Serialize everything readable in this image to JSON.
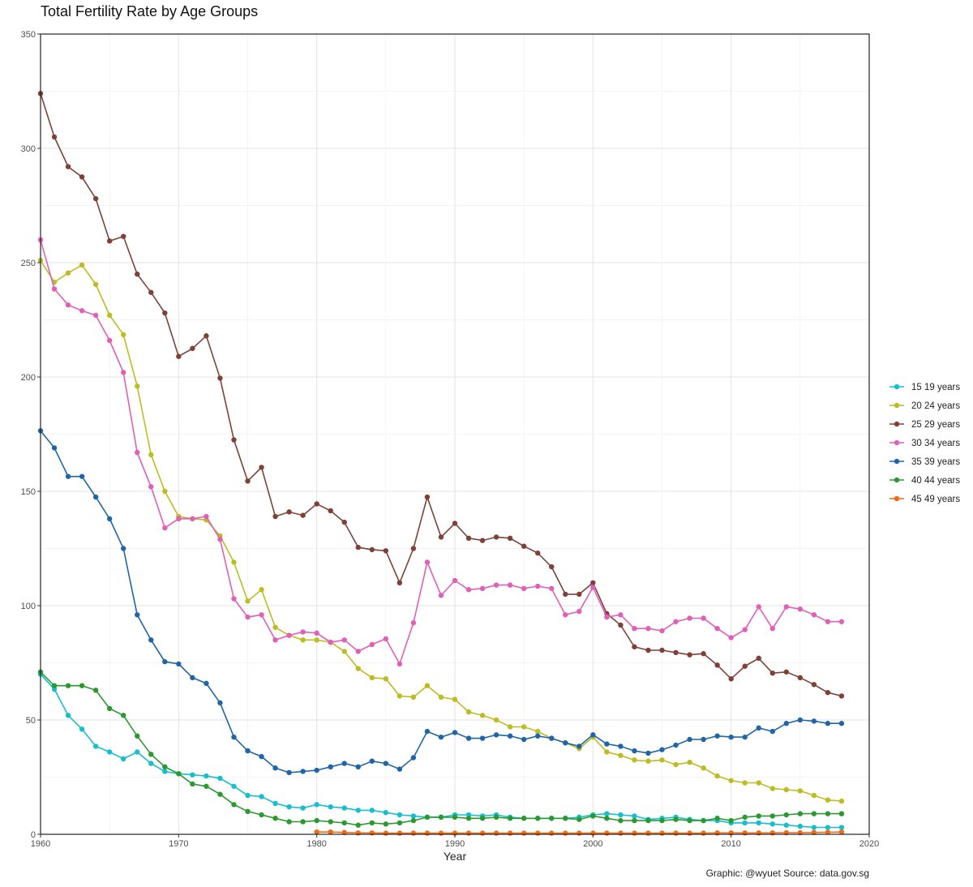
{
  "chart_data": {
    "type": "line",
    "title": "Total Fertility Rate by Age Groups",
    "xlabel": "Year",
    "ylabel": "",
    "xlim": [
      1960,
      2020
    ],
    "ylim": [
      0,
      350
    ],
    "x_ticks": [
      1960,
      1970,
      1980,
      1990,
      2000,
      2010,
      2020
    ],
    "y_ticks": [
      0,
      50,
      100,
      150,
      200,
      250,
      300,
      350
    ],
    "grid": true,
    "legend_position": "right",
    "caption": "Graphic: @wyuet Source: data.gov.sg",
    "series": [
      {
        "name": "15 19 years",
        "color": "#17becf",
        "x": [
          1960,
          1961,
          1962,
          1963,
          1964,
          1965,
          1966,
          1967,
          1968,
          1969,
          1970,
          1971,
          1972,
          1973,
          1974,
          1975,
          1976,
          1977,
          1978,
          1979,
          1980,
          1981,
          1982,
          1983,
          1984,
          1985,
          1986,
          1987,
          1988,
          1989,
          1990,
          1991,
          1992,
          1993,
          1994,
          1995,
          1996,
          1997,
          1998,
          1999,
          2000,
          2001,
          2002,
          2003,
          2004,
          2005,
          2006,
          2007,
          2008,
          2009,
          2010,
          2011,
          2012,
          2013,
          2014,
          2015,
          2016,
          2017,
          2018
        ],
        "values": [
          70,
          63.5,
          52,
          46,
          38.5,
          36,
          33,
          36,
          31,
          27.5,
          26.5,
          26,
          25.5,
          24.5,
          21,
          17,
          16.5,
          13.5,
          12,
          11.5,
          13,
          12,
          11.5,
          10.5,
          10.5,
          9.5,
          8.5,
          8,
          7.5,
          7.5,
          8.5,
          8.5,
          8,
          8.5,
          7.5,
          7,
          7,
          7,
          7,
          7.5,
          8.5,
          9,
          8.5,
          8,
          6.5,
          7,
          7.5,
          6.5,
          6,
          6,
          5,
          5,
          5,
          4.5,
          4,
          3.5,
          3,
          3,
          3
        ]
      },
      {
        "name": "20 24 years",
        "color": "#bcbd22",
        "x": [
          1960,
          1961,
          1962,
          1963,
          1964,
          1965,
          1966,
          1967,
          1968,
          1969,
          1970,
          1971,
          1972,
          1973,
          1974,
          1975,
          1976,
          1977,
          1978,
          1979,
          1980,
          1981,
          1982,
          1983,
          1984,
          1985,
          1986,
          1987,
          1988,
          1989,
          1990,
          1991,
          1992,
          1993,
          1994,
          1995,
          1996,
          1997,
          1998,
          1999,
          2000,
          2001,
          2002,
          2003,
          2004,
          2005,
          2006,
          2007,
          2008,
          2009,
          2010,
          2011,
          2012,
          2013,
          2014,
          2015,
          2016,
          2017,
          2018
        ],
        "values": [
          251,
          241.5,
          245.5,
          249,
          240.5,
          227,
          218.5,
          196,
          166,
          150,
          139,
          138,
          137.5,
          130.5,
          119,
          102,
          107,
          90.5,
          87,
          85,
          85,
          84,
          80,
          72.5,
          68.5,
          68,
          60.5,
          60,
          65,
          60,
          59,
          53.5,
          52,
          50,
          47,
          47,
          45,
          42,
          40,
          37.5,
          42.5,
          36,
          34.5,
          32.5,
          32,
          32.5,
          30.5,
          31.5,
          29,
          25.5,
          23.5,
          22.5,
          22.5,
          20,
          19.5,
          19,
          17,
          15,
          14.5
        ]
      },
      {
        "name": "25 29 years",
        "color": "#7f4137",
        "x": [
          1960,
          1961,
          1962,
          1963,
          1964,
          1965,
          1966,
          1967,
          1968,
          1969,
          1970,
          1971,
          1972,
          1973,
          1974,
          1975,
          1976,
          1977,
          1978,
          1979,
          1980,
          1981,
          1982,
          1983,
          1984,
          1985,
          1986,
          1987,
          1988,
          1989,
          1990,
          1991,
          1992,
          1993,
          1994,
          1995,
          1996,
          1997,
          1998,
          1999,
          2000,
          2001,
          2002,
          2003,
          2004,
          2005,
          2006,
          2007,
          2008,
          2009,
          2010,
          2011,
          2012,
          2013,
          2014,
          2015,
          2016,
          2017,
          2018
        ],
        "values": [
          324,
          305,
          292,
          287.5,
          278,
          259.5,
          261.5,
          245,
          237,
          228,
          209,
          212.5,
          218,
          199.5,
          172.5,
          154.5,
          160.5,
          139,
          141,
          139.5,
          144.5,
          141.5,
          136.5,
          125.5,
          124.5,
          124,
          110,
          125,
          147.5,
          130,
          136,
          129.5,
          128.5,
          130,
          129.5,
          126,
          123,
          117,
          105,
          105,
          110,
          96.5,
          91.5,
          82,
          80.5,
          80.5,
          79.5,
          78.5,
          79,
          74,
          68,
          73.5,
          77,
          70.5,
          71,
          68.5,
          65.5,
          62,
          60.5
        ]
      },
      {
        "name": "30 34 years",
        "color": "#e060b8",
        "x": [
          1960,
          1961,
          1962,
          1963,
          1964,
          1965,
          1966,
          1967,
          1968,
          1969,
          1970,
          1971,
          1972,
          1973,
          1974,
          1975,
          1976,
          1977,
          1978,
          1979,
          1980,
          1981,
          1982,
          1983,
          1984,
          1985,
          1986,
          1987,
          1988,
          1989,
          1990,
          1991,
          1992,
          1993,
          1994,
          1995,
          1996,
          1997,
          1998,
          1999,
          2000,
          2001,
          2002,
          2003,
          2004,
          2005,
          2006,
          2007,
          2008,
          2009,
          2010,
          2011,
          2012,
          2013,
          2014,
          2015,
          2016,
          2017,
          2018
        ],
        "values": [
          260,
          238.5,
          231.5,
          229,
          227,
          216,
          202,
          167,
          152,
          134,
          138,
          138,
          139,
          129,
          103,
          95,
          96,
          85,
          87,
          88.5,
          88,
          84,
          85,
          80,
          83,
          85.5,
          74.5,
          92.5,
          119,
          104.5,
          111,
          107,
          107.5,
          109,
          109,
          107.5,
          108.5,
          107.5,
          96,
          97.5,
          108,
          95,
          96,
          90,
          90,
          89,
          93,
          94.5,
          94.5,
          90,
          86,
          89.5,
          99.5,
          90,
          99.5,
          98.5,
          96,
          93,
          93
        ]
      },
      {
        "name": "35 39 years",
        "color": "#2065a8",
        "x": [
          1960,
          1961,
          1962,
          1963,
          1964,
          1965,
          1966,
          1967,
          1968,
          1969,
          1970,
          1971,
          1972,
          1973,
          1974,
          1975,
          1976,
          1977,
          1978,
          1979,
          1980,
          1981,
          1982,
          1983,
          1984,
          1985,
          1986,
          1987,
          1988,
          1989,
          1990,
          1991,
          1992,
          1993,
          1994,
          1995,
          1996,
          1997,
          1998,
          1999,
          2000,
          2001,
          2002,
          2003,
          2004,
          2005,
          2006,
          2007,
          2008,
          2009,
          2010,
          2011,
          2012,
          2013,
          2014,
          2015,
          2016,
          2017,
          2018
        ],
        "values": [
          176.5,
          169,
          156.5,
          156.5,
          147.5,
          138,
          125,
          96,
          85,
          75.5,
          74.5,
          68.5,
          66,
          57.5,
          42.5,
          36.5,
          34,
          29,
          27,
          27.5,
          28,
          29.5,
          31,
          29.5,
          32,
          31,
          28.5,
          33.5,
          45,
          42.5,
          44.5,
          42,
          42,
          43.5,
          43,
          41.5,
          43,
          42,
          40,
          38.5,
          43.5,
          39.5,
          38.5,
          36.5,
          35.5,
          37,
          39,
          41.5,
          41.5,
          43,
          42.5,
          42.5,
          46.5,
          45,
          48.5,
          50,
          49.5,
          48.5,
          48.5
        ]
      },
      {
        "name": "40 44 years",
        "color": "#2a9a30",
        "x": [
          1960,
          1961,
          1962,
          1963,
          1964,
          1965,
          1966,
          1967,
          1968,
          1969,
          1970,
          1971,
          1972,
          1973,
          1974,
          1975,
          1976,
          1977,
          1978,
          1979,
          1980,
          1981,
          1982,
          1983,
          1984,
          1985,
          1986,
          1987,
          1988,
          1989,
          1990,
          1991,
          1992,
          1993,
          1994,
          1995,
          1996,
          1997,
          1998,
          1999,
          2000,
          2001,
          2002,
          2003,
          2004,
          2005,
          2006,
          2007,
          2008,
          2009,
          2010,
          2011,
          2012,
          2013,
          2014,
          2015,
          2016,
          2017,
          2018
        ],
        "values": [
          71,
          65,
          65,
          65,
          63,
          55,
          52,
          43,
          35,
          29.5,
          26.5,
          22,
          21,
          17.5,
          13,
          10,
          8.5,
          7,
          5.5,
          5.5,
          6,
          5.5,
          5,
          4,
          5,
          4.5,
          5,
          6,
          7.5,
          7.5,
          7.5,
          7,
          7,
          7.5,
          7,
          7,
          7,
          7,
          7,
          6.5,
          8,
          7,
          6,
          6,
          6,
          6,
          6.5,
          6,
          6,
          7,
          6,
          7.5,
          8,
          8,
          8.5,
          9,
          9,
          9,
          9
        ]
      },
      {
        "name": "45 49 years",
        "color": "#f16913",
        "x": [
          1980,
          1981,
          1982,
          1983,
          1984,
          1985,
          1986,
          1987,
          1988,
          1989,
          1990,
          1991,
          1992,
          1993,
          1994,
          1995,
          1996,
          1997,
          1998,
          1999,
          2000,
          2001,
          2002,
          2003,
          2004,
          2005,
          2006,
          2007,
          2008,
          2009,
          2010,
          2011,
          2012,
          2013,
          2014,
          2015,
          2016,
          2017,
          2018
        ],
        "values": [
          1,
          1,
          0.8,
          0.6,
          0.6,
          0.5,
          0.5,
          0.5,
          0.5,
          0.5,
          0.5,
          0.5,
          0.5,
          0.5,
          0.5,
          0.5,
          0.5,
          0.5,
          0.5,
          0.5,
          0.5,
          0.5,
          0.5,
          0.5,
          0.5,
          0.5,
          0.5,
          0.5,
          0.5,
          0.6,
          0.6,
          0.6,
          0.6,
          0.6,
          0.7,
          0.7,
          0.8,
          0.9,
          1
        ]
      }
    ]
  }
}
